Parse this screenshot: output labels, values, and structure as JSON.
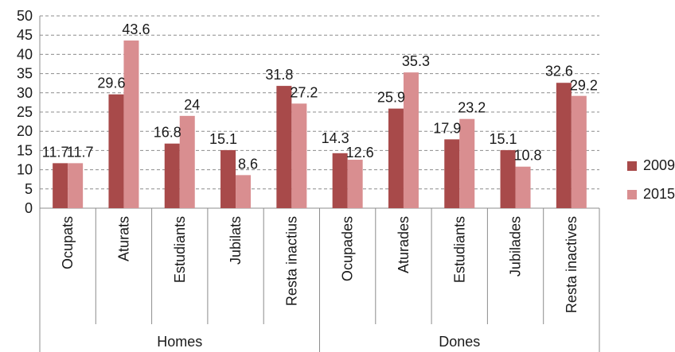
{
  "chart_data": {
    "type": "bar",
    "groups": [
      {
        "label": "Homes",
        "categories": [
          "Ocupats",
          "Aturats",
          "Estudiants",
          "Jubilats",
          "Resta inactius"
        ]
      },
      {
        "label": "Dones",
        "categories": [
          "Ocupades",
          "Aturades",
          "Estudiants",
          "Jubilades",
          "Resta inactives"
        ]
      }
    ],
    "categories": [
      "Ocupats",
      "Aturats",
      "Estudiants",
      "Jubilats",
      "Resta inactius",
      "Ocupades",
      "Aturades",
      "Estudiants",
      "Jubilades",
      "Resta inactives"
    ],
    "series": [
      {
        "name": "2009",
        "color": "#a84a4a",
        "values": [
          11.7,
          29.6,
          16.8,
          15.1,
          31.8,
          14.3,
          25.9,
          17.9,
          15.1,
          32.6
        ],
        "value_labels": [
          "11.7",
          "29.6",
          "16.8",
          "15.1",
          "31.8",
          "14.3",
          "25.9",
          "17.9",
          "15.1",
          "32.6"
        ]
      },
      {
        "name": "2015",
        "color": "#d98e90",
        "values": [
          11.7,
          43.6,
          24,
          8.6,
          27.2,
          12.6,
          35.3,
          23.2,
          10.8,
          29.2
        ],
        "value_labels": [
          "11.7",
          "43.6",
          "24",
          "8.6",
          "27.2",
          "12.6",
          "35.3",
          "23.2",
          "10.8",
          "29.2"
        ]
      }
    ],
    "ylim": [
      0,
      50
    ],
    "yticks": [
      0,
      5,
      10,
      15,
      20,
      25,
      30,
      35,
      40,
      45,
      50
    ],
    "grid": true,
    "legend_position": "right",
    "title": "",
    "xlabel": "",
    "ylabel": ""
  }
}
